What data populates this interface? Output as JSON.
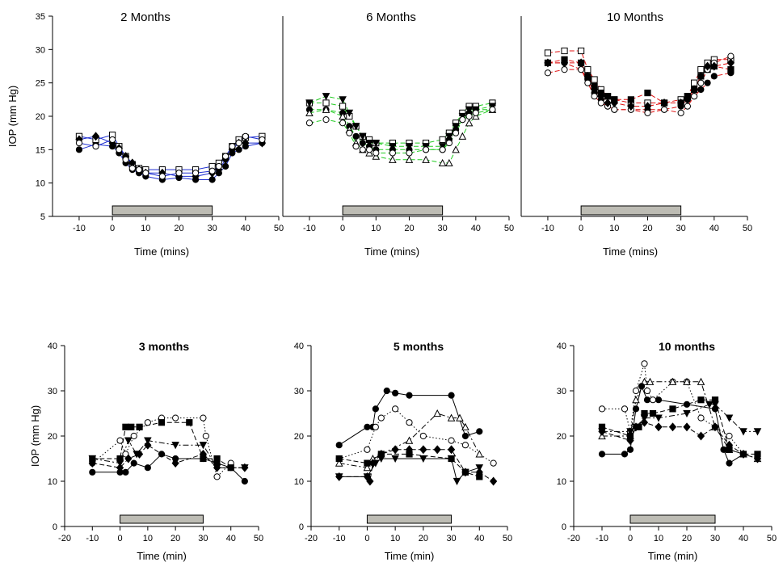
{
  "chart_data": [
    {
      "type": "line",
      "title": "2 Months",
      "x_label": "Time (mins)",
      "y_label": "IOP (mm Hg)",
      "xlim": [
        -18,
        50
      ],
      "ylim": [
        5,
        35
      ],
      "xticks": [
        -10,
        0,
        10,
        20,
        30,
        40,
        50
      ],
      "yticks": [
        5,
        10,
        15,
        20,
        25,
        30,
        35
      ],
      "shaded_span": [
        0,
        30
      ],
      "x": [
        -10,
        -5,
        0,
        2,
        4,
        6,
        8,
        10,
        15,
        20,
        25,
        30,
        32,
        34,
        36,
        38,
        40,
        45
      ],
      "series": [
        {
          "color": "#1f2fd0",
          "marker": "circle",
          "marker_fill": "#000000",
          "dash": "solid",
          "values": [
            15,
            15.8,
            15.5,
            14.5,
            13,
            12,
            11.5,
            11,
            10.5,
            10.8,
            10.5,
            10.5,
            11.5,
            12.5,
            14.5,
            15,
            15.5,
            16
          ]
        },
        {
          "color": "#1f2fd0",
          "marker": "square",
          "marker_fill": "#ffffff",
          "dash": "solid",
          "values": [
            17,
            16.5,
            17.2,
            15.5,
            14,
            12.8,
            12.2,
            12,
            12,
            12,
            12,
            12.5,
            13,
            14,
            15.5,
            16.5,
            16.8,
            17
          ]
        },
        {
          "color": "#1f2fd0",
          "marker": "diamond",
          "marker_fill": "#000000",
          "dash": "solid",
          "values": [
            16.5,
            17,
            16,
            15.2,
            14,
            13,
            12,
            11.5,
            11.5,
            11,
            11,
            11.5,
            12,
            13.5,
            15,
            16,
            16,
            16
          ]
        },
        {
          "color": "#1f2fd0",
          "marker": "circle",
          "marker_fill": "#ffffff",
          "dash": "solid",
          "values": [
            16,
            15.5,
            16.5,
            15,
            13.5,
            12.2,
            12,
            11.5,
            11,
            11.5,
            11.5,
            11.8,
            12.5,
            14,
            15.5,
            16,
            17,
            16.5
          ]
        }
      ]
    },
    {
      "type": "line",
      "title": "6 Months",
      "x_label": "Time (mins)",
      "xlim": [
        -18,
        50
      ],
      "ylim": [
        5,
        35
      ],
      "xticks": [
        -10,
        0,
        10,
        20,
        30,
        40,
        50
      ],
      "shaded_span": [
        0,
        30
      ],
      "x": [
        -10,
        -5,
        0,
        2,
        4,
        6,
        8,
        10,
        15,
        20,
        25,
        30,
        32,
        34,
        36,
        38,
        40,
        45
      ],
      "series": [
        {
          "color": "#22cc22",
          "marker": "circle",
          "marker_fill": "#000000",
          "dash": "dashed",
          "values": [
            21,
            21,
            20.5,
            18.5,
            17,
            16,
            15.5,
            15,
            15,
            15,
            15,
            15,
            16.5,
            18,
            19.5,
            20.5,
            21,
            21
          ]
        },
        {
          "color": "#22cc22",
          "marker": "square",
          "marker_fill": "#ffffff",
          "dash": "dashed",
          "values": [
            22,
            22,
            21.5,
            20,
            18.5,
            17,
            16.5,
            16,
            16,
            16,
            16,
            16.5,
            17.5,
            19,
            20.5,
            21.5,
            21.5,
            22
          ]
        },
        {
          "color": "#22cc22",
          "marker": "triangle-down",
          "marker_fill": "#000000",
          "dash": "dashed",
          "values": [
            22,
            23,
            22.5,
            20.5,
            18.5,
            17,
            16,
            16,
            15.5,
            15.5,
            15.5,
            15.5,
            17,
            18.5,
            20,
            21,
            21,
            21.5
          ]
        },
        {
          "color": "#22cc22",
          "marker": "triangle-up",
          "marker_fill": "#ffffff",
          "dash": "dashed",
          "values": [
            20.5,
            21,
            20,
            18,
            16,
            15,
            14.5,
            14,
            13.5,
            13.5,
            13.5,
            13,
            13,
            15,
            17,
            19,
            20,
            21
          ]
        },
        {
          "color": "#22cc22",
          "marker": "circle",
          "marker_fill": "#ffffff",
          "dash": "dashed",
          "values": [
            19,
            19.5,
            19,
            17.5,
            15.5,
            15,
            15,
            14.5,
            14.5,
            14.5,
            15,
            15,
            16,
            17.5,
            19.5,
            20,
            20.5,
            21
          ]
        }
      ]
    },
    {
      "type": "line",
      "title": "10 Months",
      "x_label": "Time (mins)",
      "xlim": [
        -18,
        50
      ],
      "ylim": [
        5,
        35
      ],
      "xticks": [
        -10,
        0,
        10,
        20,
        30,
        40,
        50
      ],
      "shaded_span": [
        0,
        30
      ],
      "x": [
        -10,
        -5,
        0,
        2,
        4,
        6,
        8,
        10,
        15,
        20,
        25,
        30,
        32,
        34,
        36,
        38,
        40,
        45
      ],
      "series": [
        {
          "color": "#e01010",
          "marker": "circle",
          "marker_fill": "#000000",
          "dash": "dashed",
          "values": [
            28,
            28,
            27,
            25.5,
            23.5,
            22.5,
            21.5,
            21,
            21,
            21,
            21,
            21.5,
            22.5,
            23,
            24,
            25,
            26,
            26.5
          ]
        },
        {
          "color": "#e01010",
          "marker": "square",
          "marker_fill": "#ffffff",
          "dash": "dashed",
          "values": [
            29.5,
            29.8,
            29.8,
            27,
            25.5,
            24,
            23,
            22.5,
            22,
            22,
            22,
            22.5,
            23,
            25,
            27,
            28,
            28.5,
            28.5
          ]
        },
        {
          "color": "#e01010",
          "marker": "square",
          "marker_fill": "#000000",
          "dash": "dashed",
          "values": [
            28,
            28.5,
            28,
            26,
            24.5,
            23.5,
            23,
            22.5,
            22.5,
            23.5,
            22,
            22,
            23,
            24,
            26,
            27,
            27.5,
            27
          ]
        },
        {
          "color": "#e01010",
          "marker": "circle",
          "marker_fill": "#ffffff",
          "dash": "dashed",
          "values": [
            26.5,
            27,
            27,
            25,
            23,
            22,
            21.5,
            21,
            21,
            20.5,
            21,
            20.5,
            21.5,
            23,
            25,
            27,
            28,
            29
          ]
        },
        {
          "color": "#e01010",
          "marker": "diamond",
          "marker_fill": "#000000",
          "dash": "dashed",
          "values": [
            28,
            28,
            28,
            26,
            24,
            23,
            22,
            22,
            21.5,
            21.5,
            22,
            22,
            22.5,
            24,
            26,
            27.5,
            27.5,
            28
          ]
        }
      ]
    },
    {
      "type": "line",
      "title": "3 months",
      "x_label": "Time (min)",
      "y_label": "IOP (mm Hg)",
      "xlim": [
        -20,
        50
      ],
      "ylim": [
        0,
        40
      ],
      "xticks": [
        -20,
        -10,
        0,
        10,
        20,
        30,
        40,
        50
      ],
      "yticks": [
        0,
        10,
        20,
        30,
        40
      ],
      "shaded_span": [
        0,
        30
      ],
      "series": [
        {
          "color": "#000000",
          "marker": "circle",
          "marker_fill": "#000000",
          "dash": "solid",
          "x": [
            -10,
            0,
            2,
            5,
            10,
            15,
            20,
            30,
            35,
            40,
            45
          ],
          "values": [
            12,
            12,
            12,
            14,
            13,
            16,
            15,
            15,
            14,
            13,
            10
          ]
        },
        {
          "color": "#000000",
          "marker": "circle",
          "marker_fill": "#ffffff",
          "dash": "dotted",
          "x": [
            -10,
            0,
            2,
            5,
            10,
            15,
            20,
            30,
            31,
            35,
            40
          ],
          "values": [
            14,
            19,
            16,
            20,
            23,
            24,
            24,
            24,
            20,
            11,
            14
          ]
        },
        {
          "color": "#000000",
          "marker": "square",
          "marker_fill": "#000000",
          "dash": "dashed",
          "x": [
            -10,
            0,
            2,
            4,
            7,
            15,
            25,
            30,
            35,
            40
          ],
          "values": [
            15,
            15,
            22,
            22,
            22,
            23,
            23,
            15,
            15,
            13
          ]
        },
        {
          "color": "#000000",
          "marker": "triangle-down",
          "marker_fill": "#000000",
          "dash": "dashdot",
          "x": [
            -10,
            0,
            3,
            6,
            10,
            20,
            30,
            35,
            45
          ],
          "values": [
            15,
            14,
            19,
            16,
            19,
            18,
            18,
            13,
            13
          ]
        },
        {
          "color": "#000000",
          "marker": "diamond",
          "marker_fill": "#000000",
          "dash": "dashed",
          "x": [
            -10,
            0,
            3,
            7,
            10,
            20,
            30,
            35,
            45
          ],
          "values": [
            14,
            13,
            15,
            16,
            18,
            14,
            16,
            13,
            13
          ]
        }
      ]
    },
    {
      "type": "line",
      "title": "5 months",
      "x_label": "Time (min)",
      "xlim": [
        -20,
        50
      ],
      "ylim": [
        0,
        40
      ],
      "xticks": [
        -20,
        -10,
        0,
        10,
        20,
        30,
        40,
        50
      ],
      "yticks": [
        0,
        10,
        20,
        30,
        40
      ],
      "shaded_span": [
        0,
        30
      ],
      "series": [
        {
          "color": "#000000",
          "marker": "circle",
          "marker_fill": "#000000",
          "dash": "solid",
          "x": [
            -10,
            0,
            2,
            3,
            7,
            10,
            15,
            30,
            35,
            40
          ],
          "values": [
            18,
            22,
            22,
            26,
            30,
            29.5,
            29,
            29,
            20,
            21
          ]
        },
        {
          "color": "#000000",
          "marker": "circle",
          "marker_fill": "#ffffff",
          "dash": "dotted",
          "x": [
            -10,
            0,
            3,
            5,
            10,
            15,
            20,
            30,
            35,
            45
          ],
          "values": [
            15,
            17,
            22,
            24,
            26,
            23,
            20,
            19,
            18,
            14
          ]
        },
        {
          "color": "#000000",
          "marker": "triangle-up",
          "marker_fill": "#ffffff",
          "dash": "dashdot",
          "x": [
            -10,
            0,
            2,
            5,
            15,
            25,
            30,
            33,
            35,
            40
          ],
          "values": [
            14,
            13,
            15,
            16,
            19,
            25,
            24,
            24,
            22,
            16
          ]
        },
        {
          "color": "#000000",
          "marker": "diamond",
          "marker_fill": "#000000",
          "dash": "dashed",
          "x": [
            -10,
            0,
            1,
            2,
            5,
            10,
            15,
            20,
            25,
            30,
            35,
            40,
            45
          ],
          "values": [
            11,
            11,
            10,
            14,
            16,
            17,
            17,
            17,
            17,
            17,
            12,
            12,
            10
          ]
        },
        {
          "color": "#000000",
          "marker": "triangle-down",
          "marker_fill": "#000000",
          "dash": "solid",
          "x": [
            -10,
            0,
            3,
            5,
            10,
            20,
            30,
            32,
            35,
            40
          ],
          "values": [
            11,
            11,
            14,
            15,
            15,
            15,
            15,
            10,
            12,
            13
          ]
        },
        {
          "color": "#000000",
          "marker": "square",
          "marker_fill": "#000000",
          "dash": "dashed",
          "x": [
            -10,
            0,
            5,
            15,
            30,
            35,
            40
          ],
          "values": [
            15,
            14,
            16,
            16,
            15,
            12,
            11
          ]
        }
      ]
    },
    {
      "type": "line",
      "title": "10 months",
      "x_label": "Time (min)",
      "xlim": [
        -20,
        50
      ],
      "ylim": [
        0,
        40
      ],
      "xticks": [
        -20,
        -10,
        0,
        10,
        20,
        30,
        40,
        50
      ],
      "yticks": [
        0,
        10,
        20,
        30,
        40
      ],
      "shaded_span": [
        0,
        30
      ],
      "series": [
        {
          "color": "#000000",
          "marker": "circle",
          "marker_fill": "#ffffff",
          "dash": "dotted",
          "x": [
            -10,
            -2,
            0,
            2,
            5,
            6,
            8,
            15,
            20,
            25,
            30,
            35,
            40
          ],
          "values": [
            26,
            26,
            21,
            30,
            36,
            30,
            28,
            32,
            32,
            24,
            22,
            20,
            16
          ]
        },
        {
          "color": "#000000",
          "marker": "triangle-up",
          "marker_fill": "#ffffff",
          "dash": "dashdot",
          "x": [
            -10,
            0,
            2,
            5,
            7,
            15,
            20,
            25,
            30,
            35,
            40,
            45
          ],
          "values": [
            20,
            20,
            28,
            32,
            32,
            32,
            32,
            32,
            22,
            17,
            16,
            15
          ]
        },
        {
          "color": "#000000",
          "marker": "circle",
          "marker_fill": "#000000",
          "dash": "solid",
          "x": [
            -10,
            -2,
            0,
            2,
            4,
            6,
            10,
            20,
            30,
            33,
            35,
            40
          ],
          "values": [
            16,
            16,
            17,
            26,
            31,
            28,
            28,
            27,
            26,
            17,
            14,
            16
          ]
        },
        {
          "color": "#000000",
          "marker": "square",
          "marker_fill": "#000000",
          "dash": "dashed",
          "x": [
            -10,
            0,
            3,
            5,
            8,
            15,
            25,
            30,
            35,
            40,
            45
          ],
          "values": [
            22,
            20,
            22,
            25,
            25,
            26,
            28,
            28,
            17,
            16,
            16
          ]
        },
        {
          "color": "#000000",
          "marker": "triangle-down",
          "marker_fill": "#000000",
          "dash": "dashdot",
          "x": [
            -10,
            0,
            2,
            5,
            10,
            20,
            28,
            30,
            35,
            40,
            45
          ],
          "values": [
            21,
            21,
            22,
            24,
            24,
            25,
            27,
            27,
            24,
            21,
            21
          ]
        },
        {
          "color": "#000000",
          "marker": "diamond",
          "marker_fill": "#000000",
          "dash": "dashed",
          "x": [
            -10,
            0,
            2,
            5,
            10,
            15,
            20,
            25,
            30,
            35,
            40,
            45
          ],
          "values": [
            21,
            19,
            22,
            23,
            22,
            22,
            22,
            20,
            22,
            18,
            16,
            15
          ]
        }
      ]
    }
  ]
}
